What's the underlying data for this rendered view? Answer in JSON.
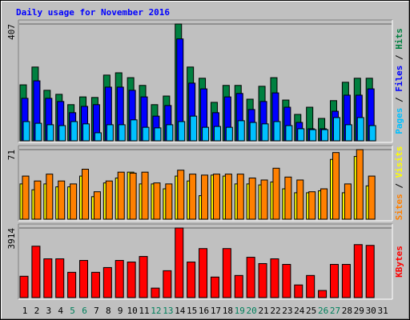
{
  "chart_data": [
    {
      "type": "bar",
      "title": "Daily usage for November 2016",
      "legend_separator": " / ",
      "ylim": [
        0,
        407
      ],
      "yticks": [
        407
      ],
      "series": [
        {
          "name": "Hits",
          "color": "#008040",
          "values": [
            195,
            257,
            176,
            162,
            126,
            153,
            151,
            229,
            237,
            220,
            193,
            126,
            156,
            407,
            257,
            218,
            134,
            193,
            193,
            145,
            190,
            220,
            142,
            92,
            117,
            78,
            140,
            204,
            218,
            218,
            null
          ]
        },
        {
          "name": "Files",
          "color": "#0000ff",
          "values": [
            148,
            209,
            148,
            137,
            98,
            120,
            126,
            187,
            187,
            176,
            153,
            86,
            123,
            355,
            201,
            181,
            98,
            153,
            165,
            109,
            137,
            167,
            117,
            64,
            42,
            42,
            103,
            159,
            159,
            181,
            null
          ]
        },
        {
          "name": "Pages",
          "color": "#00c0ff",
          "values": [
            67,
            61,
            56,
            53,
            67,
            59,
            28,
            56,
            56,
            73,
            47,
            45,
            56,
            67,
            86,
            47,
            50,
            47,
            70,
            64,
            59,
            67,
            53,
            42,
            39,
            39,
            81,
            56,
            81,
            53,
            null
          ]
        }
      ]
    },
    {
      "type": "bar",
      "ylim": [
        0,
        71
      ],
      "yticks": [
        71
      ],
      "series": [
        {
          "name": "Visits",
          "color": "#ffff00",
          "values": [
            36,
            30,
            36,
            33,
            33,
            44,
            23,
            37,
            42,
            48,
            36,
            36,
            31,
            44,
            39,
            24,
            45,
            44,
            36,
            36,
            35,
            38,
            31,
            27,
            27,
            29,
            61,
            27,
            64,
            34,
            null
          ]
        },
        {
          "name": "Sites",
          "color": "#ff8000",
          "values": [
            44,
            39,
            46,
            39,
            36,
            51,
            28,
            39,
            48,
            47,
            48,
            37,
            36,
            50,
            46,
            45,
            46,
            46,
            46,
            42,
            40,
            52,
            43,
            40,
            28,
            31,
            68,
            36,
            71,
            44,
            null
          ]
        }
      ]
    },
    {
      "type": "bar",
      "ylim": [
        0,
        3914
      ],
      "yticks": [
        3914
      ],
      "categories": [
        "1",
        "2",
        "3",
        "4",
        "5",
        "6",
        "7",
        "8",
        "9",
        "10",
        "11",
        "12",
        "13",
        "14",
        "15",
        "16",
        "17",
        "18",
        "19",
        "20",
        "21",
        "22",
        "23",
        "24",
        "25",
        "26",
        "27",
        "28",
        "29",
        "30",
        "31"
      ],
      "category_colors": [
        "#000000",
        "#000000",
        "#000000",
        "#000000",
        "#00805c",
        "#00805c",
        "#000000",
        "#000000",
        "#000000",
        "#000000",
        "#000000",
        "#00805c",
        "#00805c",
        "#000000",
        "#000000",
        "#000000",
        "#000000",
        "#000000",
        "#00805c",
        "#00805c",
        "#000000",
        "#000000",
        "#000000",
        "#000000",
        "#000000",
        "#00805c",
        "#00805c",
        "#000000",
        "#000000",
        "#000000",
        "#000000"
      ],
      "series": [
        {
          "name": "KBytes",
          "color": "#ff0000",
          "values": [
            1201,
            2891,
            2180,
            2180,
            1423,
            2090,
            1423,
            1690,
            2090,
            2001,
            2313,
            534,
            1512,
            3914,
            2001,
            2757,
            1156,
            2757,
            1245,
            2268,
            1913,
            2180,
            1868,
            712,
            1245,
            400,
            1868,
            1868,
            2980,
            2936,
            null
          ]
        }
      ]
    }
  ]
}
